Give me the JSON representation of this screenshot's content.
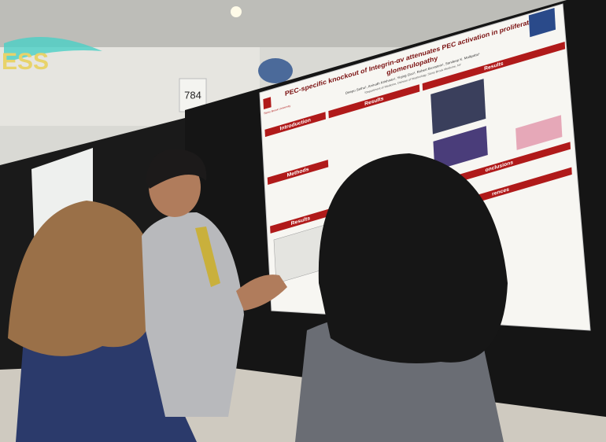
{
  "sign": {
    "text": "ESS"
  },
  "booth_number": "784",
  "poster": {
    "title_line1": "PEC-specific knockout of Integrin-αv attenuates PEC activation in proliferative",
    "title_line2": "glomerulopathy",
    "authors": "Deepu Sethu¹, Anirudh Krishnan¹, Yiqing Guo¹, Robert Bronstein¹, Sandeep K. Mallipattu¹",
    "affiliation": "¹Department of Medicine, Division of Nephrology, Stony Brook Medicine, NY",
    "logo": "Stony Brook University",
    "sections": [
      "Introduction",
      "Results",
      "Methods",
      "Results",
      "Results",
      "onclusions",
      "rences"
    ]
  }
}
